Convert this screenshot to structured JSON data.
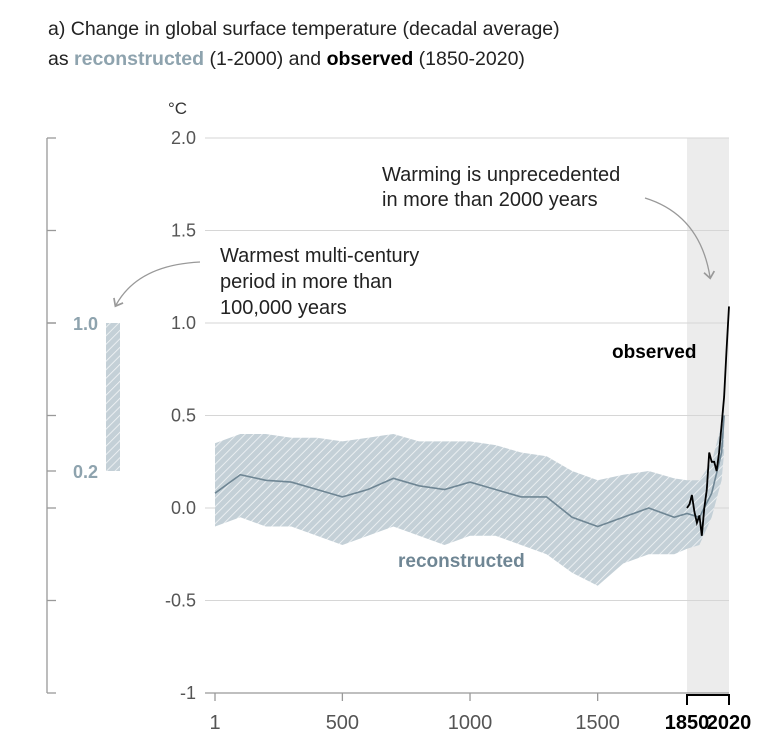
{
  "title": {
    "line1": "a) Change in global surface temperature (decadal average)",
    "line2_prefix": "as ",
    "line2_recon": "reconstructed",
    "line2_mid": " (1-2000) and ",
    "line2_obs": "observed",
    "line2_suffix": " (1850-2020)"
  },
  "colors": {
    "reconstructed_band": "#c4d0d7",
    "reconstructed_line": "#6f8694",
    "observed_line": "#000000",
    "observed_period_shade": "#ececec",
    "axis": "#999999",
    "label_gray": "#8ea3ae"
  },
  "chart_data": {
    "type": "line",
    "ylabel": "°C",
    "ylim": [
      -1,
      2
    ],
    "yticks": [
      "2.0",
      "1.5",
      "1.0",
      "0.5",
      "0.0",
      "-0.5",
      "-1"
    ],
    "xticks": [
      "1",
      "500",
      "1000",
      "1500",
      "1850",
      "2020"
    ],
    "xlim": [
      1,
      2020
    ],
    "observed_period": [
      1850,
      2020
    ],
    "annotations": {
      "warming": [
        "Warming is unprecedented",
        "in more than 2000 years"
      ],
      "warmest": [
        "Warmest multi-century",
        "period in more than",
        "100,000 years"
      ]
    },
    "side_bar": {
      "low": 0.2,
      "high": 1.0,
      "low_label": "0.2",
      "high_label": "1.0"
    },
    "series": [
      {
        "name": "reconstructed",
        "x": [
          1,
          100,
          200,
          300,
          400,
          500,
          600,
          700,
          800,
          900,
          1000,
          1100,
          1200,
          1300,
          1400,
          1500,
          1600,
          1700,
          1800,
          1850,
          1900,
          1950,
          1990,
          2000
        ],
        "y": [
          0.08,
          0.18,
          0.15,
          0.14,
          0.1,
          0.06,
          0.1,
          0.16,
          0.12,
          0.1,
          0.14,
          0.1,
          0.06,
          0.06,
          -0.05,
          -0.1,
          -0.05,
          0.0,
          -0.05,
          -0.03,
          -0.05,
          0.08,
          0.3,
          0.5
        ],
        "lower": [
          -0.1,
          -0.05,
          -0.1,
          -0.1,
          -0.15,
          -0.2,
          -0.15,
          -0.1,
          -0.15,
          -0.2,
          -0.15,
          -0.15,
          -0.2,
          -0.25,
          -0.35,
          -0.42,
          -0.3,
          -0.25,
          -0.25,
          -0.22,
          -0.2,
          -0.05,
          0.15,
          0.3
        ],
        "upper": [
          0.35,
          0.4,
          0.4,
          0.38,
          0.38,
          0.36,
          0.38,
          0.4,
          0.36,
          0.36,
          0.36,
          0.34,
          0.3,
          0.28,
          0.2,
          0.15,
          0.18,
          0.2,
          0.16,
          0.15,
          0.15,
          0.25,
          0.45,
          0.65
        ]
      },
      {
        "name": "observed",
        "x": [
          1850,
          1860,
          1870,
          1880,
          1890,
          1900,
          1910,
          1920,
          1930,
          1940,
          1950,
          1960,
          1970,
          1980,
          1990,
          2000,
          2010,
          2020
        ],
        "y": [
          0.0,
          0.02,
          0.07,
          -0.02,
          -0.08,
          -0.04,
          -0.15,
          0.0,
          0.1,
          0.3,
          0.25,
          0.25,
          0.2,
          0.3,
          0.45,
          0.6,
          0.85,
          1.09
        ]
      }
    ]
  }
}
